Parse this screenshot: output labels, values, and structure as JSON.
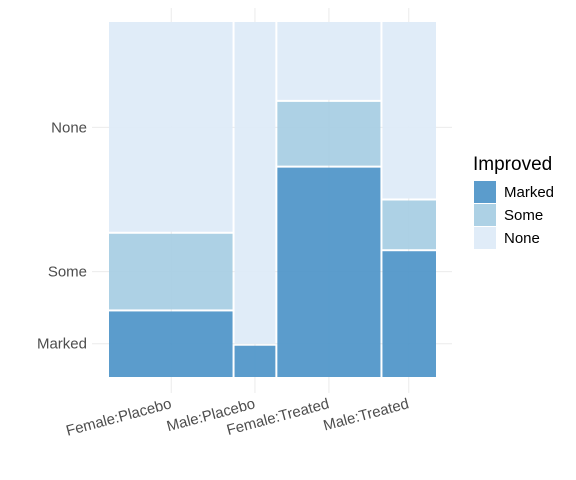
{
  "chart_data": {
    "type": "mosaic",
    "categories": [
      "Female:Placebo",
      "Male:Placebo",
      "Female:Treated",
      "Male:Treated"
    ],
    "column_shares": [
      0.3809,
      0.1309,
      0.3214,
      0.1668
    ],
    "levels": [
      "Marked",
      "Some",
      "None"
    ],
    "proportions": [
      {
        "category": "Female:Placebo",
        "Marked": 0.1875,
        "Some": 0.2188,
        "None": 0.5937
      },
      {
        "category": "Male:Placebo",
        "Marked": 0.0909,
        "Some": 0.0,
        "None": 0.9091
      },
      {
        "category": "Female:Treated",
        "Marked": 0.5926,
        "Some": 0.1852,
        "None": 0.2222
      },
      {
        "category": "Male:Treated",
        "Marked": 0.3571,
        "Some": 0.1429,
        "None": 0.5
      }
    ],
    "y_tick_labels": [
      "Marked",
      "Some",
      "None"
    ],
    "y_tick_positions": [
      0.0938,
      0.2969,
      0.7031
    ],
    "grid": true,
    "legend": {
      "title": "Improved",
      "position": "right",
      "labels": [
        "Marked",
        "Some",
        "None"
      ]
    },
    "colors": {
      "Marked": "#4f94c8",
      "Some": "#a7cde3",
      "None": "#deebf7"
    }
  }
}
